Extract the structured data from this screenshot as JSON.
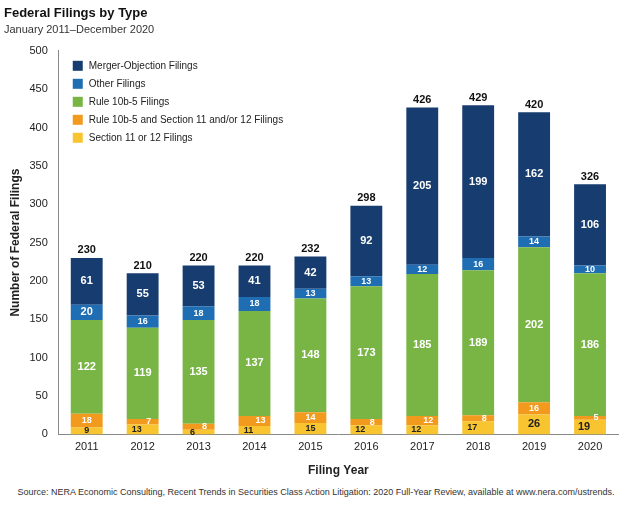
{
  "chart_data": {
    "type": "bar",
    "title": "Federal Filings by Type",
    "subtitle": "January 2011–December 2020",
    "x_label": "Filing Year",
    "y_label": "Number of Federal Filings",
    "source": "Source: NERA Economic Consulting, Recent Trends in Securities Class Action Litigation: 2020 Full-Year Review, available at www.nera.com/ustrends.",
    "categories": [
      "2011",
      "2012",
      "2013",
      "2014",
      "2015",
      "2016",
      "2017",
      "2018",
      "2019",
      "2020"
    ],
    "series": [
      {
        "name": "Section 11 or 12 Filings",
        "color": "#f8c531",
        "values": [
          9,
          13,
          6,
          11,
          15,
          12,
          12,
          17,
          26,
          19
        ]
      },
      {
        "name": "Rule 10b-5 and Section 11 and/or 12 Filings",
        "color": "#f29a1e",
        "values": [
          18,
          7,
          8,
          13,
          14,
          8,
          12,
          8,
          16,
          5
        ]
      },
      {
        "name": "Rule 10b-5 Filings",
        "color": "#78b544",
        "values": [
          122,
          119,
          135,
          137,
          148,
          173,
          185,
          189,
          202,
          186
        ]
      },
      {
        "name": "Other Filings",
        "color": "#1f6db3",
        "values": [
          20,
          16,
          18,
          18,
          13,
          13,
          12,
          16,
          14,
          10
        ]
      },
      {
        "name": "Merger-Objection Filings",
        "color": "#173d70",
        "values": [
          61,
          55,
          53,
          41,
          42,
          92,
          205,
          199,
          162,
          106
        ]
      }
    ],
    "totals": [
      230,
      210,
      220,
      220,
      232,
      298,
      426,
      429,
      420,
      326
    ],
    "ylim": [
      0,
      500
    ],
    "yticks": [
      0,
      50,
      100,
      150,
      200,
      250,
      300,
      350,
      400,
      450,
      500
    ],
    "stacked": true,
    "data_labels": true,
    "grid": false,
    "legend": "upper left"
  }
}
